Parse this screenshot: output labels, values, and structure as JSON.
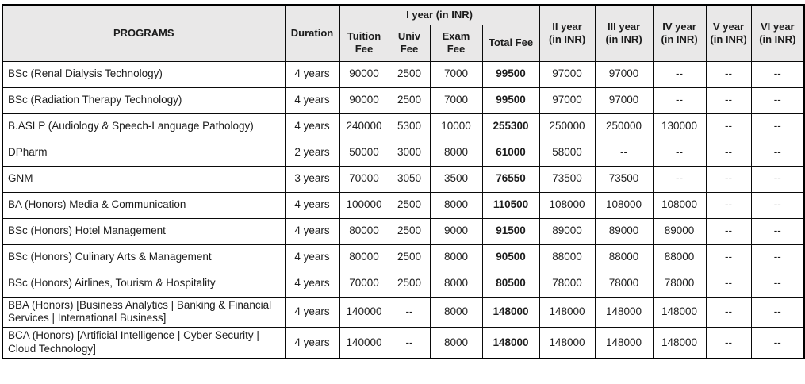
{
  "header": {
    "programs": "PROGRAMS",
    "duration": "Duration",
    "year1_group": "I year (in INR)",
    "year1_sub": [
      {
        "line1": "Tuition",
        "line2": "Fee"
      },
      {
        "line1": "Univ",
        "line2": "Fee"
      },
      {
        "line1": "Exam",
        "line2": "Fee"
      },
      {
        "line1": "Total Fee",
        "line2": ""
      }
    ],
    "years": [
      {
        "line1": "II year",
        "line2": "(in INR)"
      },
      {
        "line1": "III year",
        "line2": "(in INR)"
      },
      {
        "line1": "IV year",
        "line2": "(in INR)"
      },
      {
        "line1": "V year",
        "line2": "(in INR)"
      },
      {
        "line1": "VI year",
        "line2": "(in INR)"
      }
    ]
  },
  "rows": [
    {
      "program": "BSc (Renal Dialysis Technology)",
      "duration": "4 years",
      "tuition": "90000",
      "univ": "2500",
      "exam": "7000",
      "total": "99500",
      "y2": "97000",
      "y3": "97000",
      "y4": "--",
      "y5": "--",
      "y6": "--"
    },
    {
      "program": "BSc (Radiation Therapy Technology)",
      "duration": "4 years",
      "tuition": "90000",
      "univ": "2500",
      "exam": "7000",
      "total": "99500",
      "y2": "97000",
      "y3": "97000",
      "y4": "--",
      "y5": "--",
      "y6": "--"
    },
    {
      "program": "B.ASLP (Audiology & Speech-Language Pathology)",
      "duration": "4 years",
      "tuition": "240000",
      "univ": "5300",
      "exam": "10000",
      "total": "255300",
      "y2": "250000",
      "y3": "250000",
      "y4": "130000",
      "y5": "--",
      "y6": "--"
    },
    {
      "program": "DPharm",
      "duration": "2 years",
      "tuition": "50000",
      "univ": "3000",
      "exam": "8000",
      "total": "61000",
      "y2": "58000",
      "y3": "--",
      "y4": "--",
      "y5": "--",
      "y6": "--"
    },
    {
      "program": "GNM",
      "duration": "3 years",
      "tuition": "70000",
      "univ": "3050",
      "exam": "3500",
      "total": "76550",
      "y2": "73500",
      "y3": "73500",
      "y4": "--",
      "y5": "--",
      "y6": "--"
    },
    {
      "program": "BA (Honors) Media & Communication",
      "duration": "4 years",
      "tuition": "100000",
      "univ": "2500",
      "exam": "8000",
      "total": "110500",
      "y2": "108000",
      "y3": "108000",
      "y4": "108000",
      "y5": "--",
      "y6": "--"
    },
    {
      "program": "BSc (Honors) Hotel Management",
      "duration": "4 years",
      "tuition": "80000",
      "univ": "2500",
      "exam": "9000",
      "total": "91500",
      "y2": "89000",
      "y3": "89000",
      "y4": "89000",
      "y5": "--",
      "y6": "--"
    },
    {
      "program": "BSc (Honors) Culinary Arts & Management",
      "duration": "4 years",
      "tuition": "80000",
      "univ": "2500",
      "exam": "8000",
      "total": "90500",
      "y2": "88000",
      "y3": "88000",
      "y4": "88000",
      "y5": "--",
      "y6": "--"
    },
    {
      "program": "BSc (Honors) Airlines, Tourism & Hospitality",
      "duration": "4 years",
      "tuition": "70000",
      "univ": "2500",
      "exam": "8000",
      "total": "80500",
      "y2": "78000",
      "y3": "78000",
      "y4": "78000",
      "y5": "--",
      "y6": "--"
    },
    {
      "program": "BBA (Honors) [Business Analytics | Banking & Financial Services | International Business]",
      "duration": "4 years",
      "tuition": "140000",
      "univ": "--",
      "exam": "8000",
      "total": "148000",
      "y2": "148000",
      "y3": "148000",
      "y4": "148000",
      "y5": "--",
      "y6": "--"
    },
    {
      "program": "BCA (Honors) [Artificial Intelligence | Cyber Security | Cloud Technology]",
      "duration": "4 years",
      "tuition": "140000",
      "univ": "--",
      "exam": "8000",
      "total": "148000",
      "y2": "148000",
      "y3": "148000",
      "y4": "148000",
      "y5": "--",
      "y6": "--"
    }
  ],
  "colors": {
    "header_bg": "#e9e8e8",
    "border": "#0a0a0a",
    "text": "#1c1c1c",
    "body_bg": "#ffffff"
  }
}
